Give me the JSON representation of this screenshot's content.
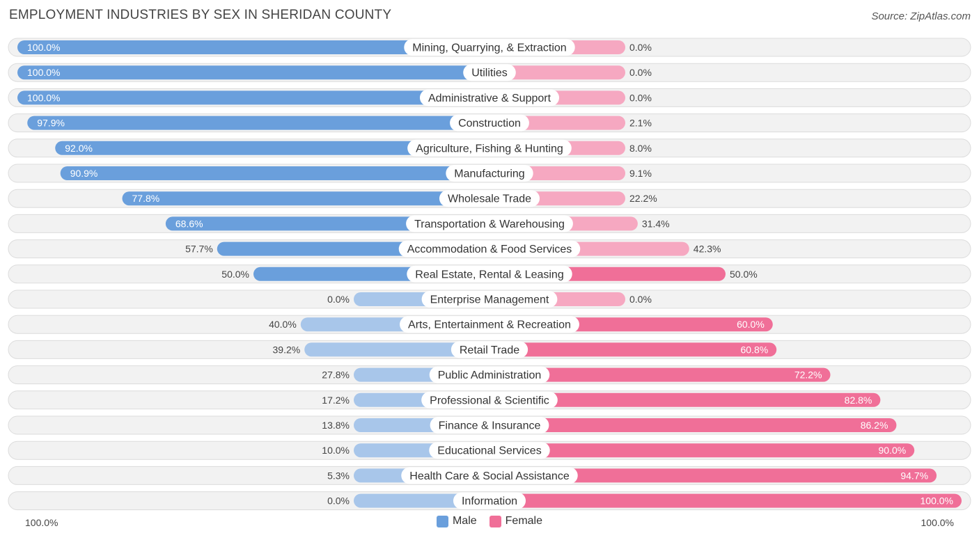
{
  "title": "EMPLOYMENT INDUSTRIES BY SEX IN SHERIDAN COUNTY",
  "source": "Source: ZipAtlas.com",
  "colors": {
    "male": "#6a9fdc",
    "male_light": "#a8c6ea",
    "female": "#f06f98",
    "female_light": "#f6a8c1",
    "row_bg": "#f2f2f2",
    "row_border": "#dcdcdc"
  },
  "chart_data": {
    "type": "bar",
    "orientation": "horizontal-diverging",
    "title": "EMPLOYMENT INDUSTRIES BY SEX IN SHERIDAN COUNTY",
    "categories": [
      "Mining, Quarrying, & Extraction",
      "Utilities",
      "Administrative & Support",
      "Construction",
      "Agriculture, Fishing & Hunting",
      "Manufacturing",
      "Wholesale Trade",
      "Transportation & Warehousing",
      "Accommodation & Food Services",
      "Real Estate, Rental & Leasing",
      "Enterprise Management",
      "Arts, Entertainment & Recreation",
      "Retail Trade",
      "Public Administration",
      "Professional & Scientific",
      "Finance & Insurance",
      "Educational Services",
      "Health Care & Social Assistance",
      "Information"
    ],
    "series": [
      {
        "name": "Male",
        "values": [
          100.0,
          100.0,
          100.0,
          97.9,
          92.0,
          90.9,
          77.8,
          68.6,
          57.7,
          50.0,
          0.0,
          40.0,
          39.2,
          27.8,
          17.2,
          13.8,
          10.0,
          5.3,
          0.0
        ],
        "labels": [
          "100.0%",
          "100.0%",
          "100.0%",
          "97.9%",
          "92.0%",
          "90.9%",
          "77.8%",
          "68.6%",
          "57.7%",
          "50.0%",
          "0.0%",
          "40.0%",
          "39.2%",
          "27.8%",
          "17.2%",
          "13.8%",
          "10.0%",
          "5.3%",
          "0.0%"
        ]
      },
      {
        "name": "Female",
        "values": [
          0.0,
          0.0,
          0.0,
          2.1,
          8.0,
          9.1,
          22.2,
          31.4,
          42.3,
          50.0,
          0.0,
          60.0,
          60.8,
          72.2,
          82.8,
          86.2,
          90.0,
          94.7,
          100.0
        ],
        "labels": [
          "0.0%",
          "0.0%",
          "0.0%",
          "2.1%",
          "8.0%",
          "9.1%",
          "22.2%",
          "31.4%",
          "42.3%",
          "50.0%",
          "0.0%",
          "60.0%",
          "60.8%",
          "72.2%",
          "82.8%",
          "86.2%",
          "90.0%",
          "94.7%",
          "100.0%"
        ]
      }
    ],
    "xlim": [
      -100,
      100
    ],
    "axis_left_label": "100.0%",
    "axis_right_label": "100.0%",
    "legend": [
      "Male",
      "Female"
    ],
    "legend_position": "bottom-center"
  }
}
